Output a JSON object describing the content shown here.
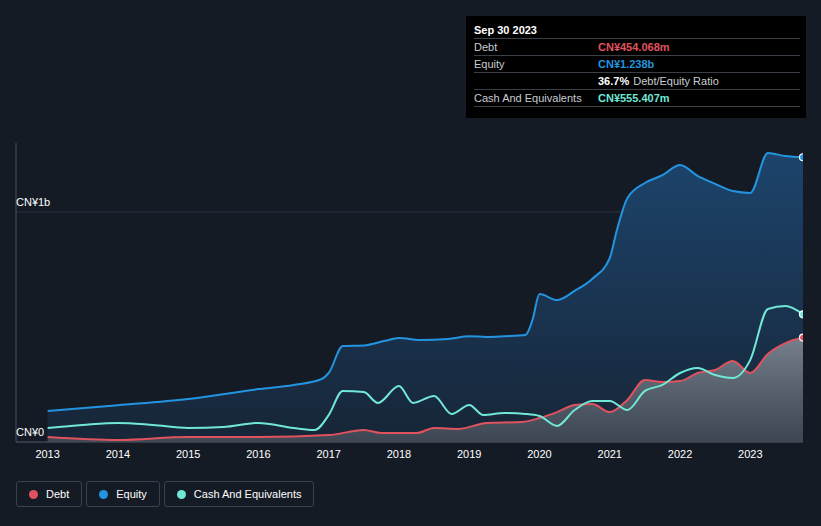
{
  "chart_data": {
    "type": "area",
    "grid": true,
    "legend": "bottom",
    "xlim": [
      2012.55,
      2023.75
    ],
    "xticks": [
      2013,
      2014,
      2015,
      2016,
      2017,
      2018,
      2019,
      2020,
      2021,
      2022,
      2023
    ],
    "ylim": [
      0,
      1.3
    ],
    "yticks": [
      {
        "value": 0,
        "label": "CN¥0"
      },
      {
        "value": 1,
        "label": "CN¥1b"
      }
    ],
    "annotations": {
      "title": "Sep 30 2023",
      "rows": [
        {
          "label": "Debt",
          "value": "CN¥454.068m"
        },
        {
          "label": "Equity",
          "value": "CN¥1.238b"
        }
      ],
      "ratio": {
        "value": "36.7%",
        "label": "Debt/Equity Ratio"
      },
      "last_row": {
        "label": "Cash And Equivalents",
        "value": "CN¥555.407m"
      }
    },
    "series": [
      {
        "name": "Debt",
        "type": "area",
        "color": "#e0525e",
        "x": [
          2013,
          2014,
          2015,
          2016,
          2017,
          2017.5,
          2017.75,
          2018.25,
          2018.5,
          2018.85,
          2019.25,
          2019.75,
          2020,
          2020.25,
          2020.5,
          2020.75,
          2021,
          2021.25,
          2021.5,
          2021.75,
          2022,
          2022.25,
          2022.5,
          2022.75,
          2023,
          2023.25,
          2023.5,
          2023.75
        ],
        "values": [
          0.022,
          0.009,
          0.022,
          0.022,
          0.03,
          0.052,
          0.039,
          0.039,
          0.061,
          0.057,
          0.083,
          0.087,
          0.104,
          0.13,
          0.161,
          0.165,
          0.13,
          0.183,
          0.27,
          0.261,
          0.265,
          0.3,
          0.313,
          0.352,
          0.3,
          0.383,
          0.43,
          0.454
        ]
      },
      {
        "name": "Equity",
        "type": "area",
        "color": "#2394df",
        "x": [
          2013,
          2014,
          2015,
          2016,
          2016.5,
          2016.9,
          2017,
          2017.2,
          2017.5,
          2017.8,
          2018,
          2018.3,
          2018.7,
          2019,
          2019.25,
          2019.5,
          2019.8,
          2019.9,
          2020,
          2020.25,
          2020.5,
          2020.75,
          2021,
          2021.1,
          2021.25,
          2021.5,
          2021.75,
          2022,
          2022.25,
          2022.5,
          2022.75,
          2023,
          2023.25,
          2023.5,
          2023.75
        ],
        "values": [
          0.135,
          0.16,
          0.187,
          0.23,
          0.248,
          0.274,
          0.3,
          0.417,
          0.42,
          0.44,
          0.452,
          0.443,
          0.448,
          0.46,
          0.457,
          0.46,
          0.465,
          0.53,
          0.643,
          0.617,
          0.657,
          0.709,
          0.8,
          0.92,
          1.06,
          1.126,
          1.16,
          1.204,
          1.157,
          1.122,
          1.091,
          1.083,
          1.257,
          1.243,
          1.238
        ]
      },
      {
        "name": "Cash And Equivalents",
        "type": "line",
        "color": "#71e7d6",
        "x": [
          2013,
          2013.5,
          2014,
          2014.5,
          2015,
          2015.5,
          2016,
          2016.5,
          2016.8,
          2017,
          2017.2,
          2017.5,
          2017.7,
          2018,
          2018.2,
          2018.5,
          2018.75,
          2019,
          2019.2,
          2019.5,
          2019.8,
          2020,
          2020.25,
          2020.5,
          2020.75,
          2021,
          2021.25,
          2021.5,
          2021.75,
          2022,
          2022.25,
          2022.5,
          2022.75,
          2023,
          2023.25,
          2023.5,
          2023.75
        ],
        "values": [
          0.061,
          0.074,
          0.083,
          0.074,
          0.061,
          0.065,
          0.083,
          0.061,
          0.052,
          0.117,
          0.222,
          0.217,
          0.17,
          0.243,
          0.17,
          0.2,
          0.122,
          0.161,
          0.117,
          0.126,
          0.122,
          0.113,
          0.07,
          0.139,
          0.178,
          0.178,
          0.139,
          0.222,
          0.248,
          0.3,
          0.322,
          0.291,
          0.278,
          0.357,
          0.578,
          0.591,
          0.555
        ]
      }
    ]
  }
}
